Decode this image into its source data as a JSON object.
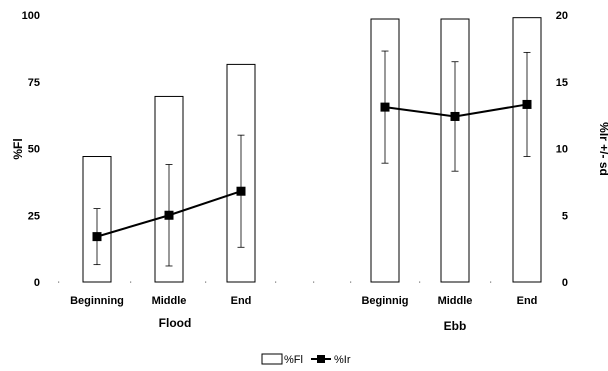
{
  "chart_data": {
    "type": "bar",
    "groups": [
      {
        "label": "Flood",
        "categories": [
          "Beginning",
          "Middle",
          "End"
        ]
      },
      {
        "label": "Ebb",
        "categories": [
          "Beginnig",
          "Middle",
          "End"
        ]
      }
    ],
    "series": [
      {
        "name": "%Fl",
        "type": "bar",
        "axis": "left",
        "values": [
          47,
          69.5,
          81.5,
          98.5,
          98.5,
          99
        ]
      },
      {
        "name": "%Ir",
        "type": "line",
        "axis": "right",
        "values": [
          3.4,
          5.0,
          6.8,
          13.1,
          12.4,
          13.3
        ],
        "sd": [
          2.1,
          3.8,
          4.2,
          4.2,
          4.1,
          3.9
        ]
      }
    ],
    "left_axis": {
      "label": "%Fl",
      "ylim": [
        0,
        100
      ],
      "ticks": [
        "0",
        "25",
        "50",
        "75",
        "100"
      ]
    },
    "right_axis": {
      "label": "%Ir +/- sd",
      "ylim": [
        0,
        20
      ],
      "ticks": [
        "0",
        "5",
        "10",
        "15",
        "20"
      ]
    },
    "legend": {
      "position": "bottom-center",
      "entries": [
        "%Fl",
        "%Ir"
      ]
    },
    "grid": false,
    "colors": {
      "bar_fill": "#ffffff",
      "stroke": "#000000",
      "marker": "#000000"
    }
  }
}
